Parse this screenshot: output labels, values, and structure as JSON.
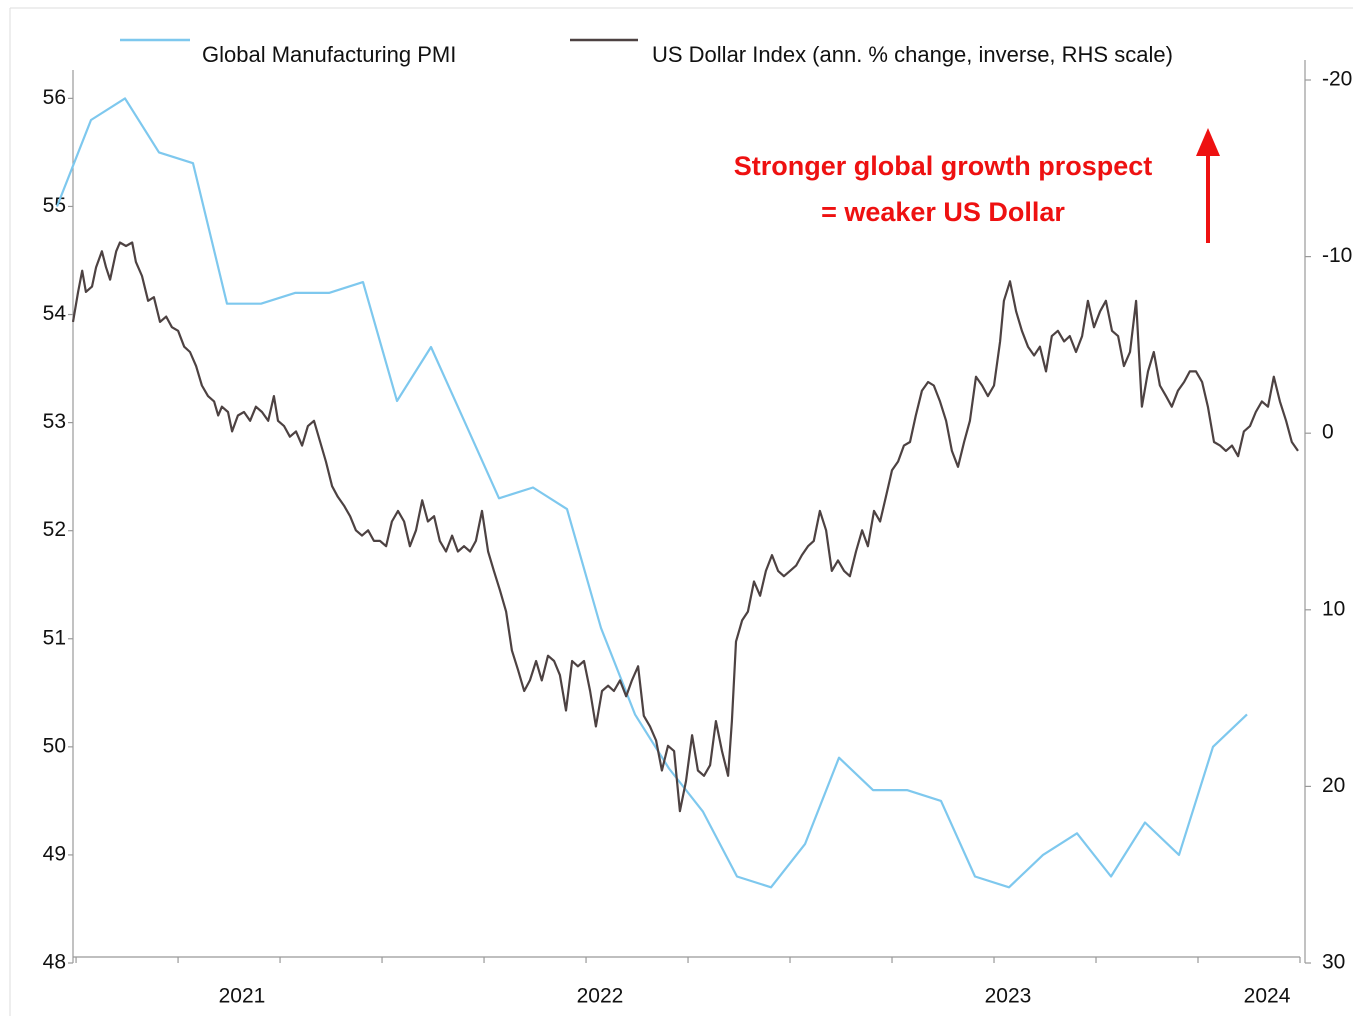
{
  "chart_data": {
    "type": "line",
    "annotations": [
      "Stronger global growth prospect",
      "= weaker US Dollar"
    ],
    "legend": "top",
    "xlim": [
      0.47,
      36.56
    ],
    "xticks": [
      {
        "value": 5.44,
        "label": "2021"
      },
      {
        "value": 15.97,
        "label": "2022"
      },
      {
        "value": 27.97,
        "label": "2023"
      },
      {
        "value": 35.59,
        "label": "2024"
      }
    ],
    "xticks_minor": [
      0.56,
      3.56,
      6.56,
      9.56,
      12.56,
      15.56,
      18.56,
      21.56,
      24.56,
      27.56,
      30.56,
      33.56,
      36.56
    ],
    "ylim": [
      48,
      56.17
    ],
    "yticks": [
      48,
      49,
      50,
      51,
      52,
      53,
      54,
      55,
      56
    ],
    "y2lim": [
      30,
      -20
    ],
    "y2ticks": [
      -20,
      -10,
      0,
      10,
      20,
      30
    ],
    "series": [
      {
        "name": "Global Manufacturing PMI",
        "color": "#7ec8ee",
        "x": [
          0,
          1,
          2,
          3,
          4,
          5,
          6,
          7,
          8,
          9,
          10,
          11,
          12,
          13,
          14,
          15,
          16,
          17,
          18,
          19,
          20,
          21,
          22,
          23,
          24,
          25,
          26,
          27,
          28,
          29,
          30,
          31,
          32,
          33,
          34,
          35
        ],
        "values": [
          55.0,
          55.8,
          56.0,
          55.5,
          55.4,
          54.1,
          54.1,
          54.2,
          54.2,
          54.3,
          53.2,
          53.7,
          53.0,
          52.3,
          52.4,
          52.2,
          51.1,
          50.3,
          49.8,
          49.4,
          48.8,
          48.7,
          49.1,
          49.9,
          49.6,
          49.6,
          49.5,
          48.8,
          48.7,
          49.0,
          49.2,
          48.8,
          49.3,
          49.0,
          50.0,
          50.3
        ]
      },
      {
        "name": "US Dollar Index (ann. % change, inverse, RHS scale)",
        "color": "#4d4242",
        "axis": "y2",
        "x": [
          0.47,
          0.62,
          0.74,
          0.85,
          1.03,
          1.15,
          1.32,
          1.44,
          1.56,
          1.74,
          1.85,
          2.03,
          2.21,
          2.32,
          2.5,
          2.68,
          2.85,
          3.03,
          3.21,
          3.38,
          3.56,
          3.74,
          3.91,
          4.09,
          4.26,
          4.44,
          4.62,
          4.74,
          4.85,
          5.03,
          5.15,
          5.32,
          5.5,
          5.68,
          5.85,
          6.03,
          6.21,
          6.38,
          6.5,
          6.68,
          6.85,
          7.03,
          7.21,
          7.38,
          7.56,
          7.74,
          7.91,
          8.09,
          8.26,
          8.44,
          8.62,
          8.79,
          8.97,
          9.15,
          9.32,
          9.5,
          9.68,
          9.85,
          10.03,
          10.21,
          10.38,
          10.56,
          10.74,
          10.91,
          11.09,
          11.26,
          11.44,
          11.62,
          11.79,
          11.97,
          12.15,
          12.32,
          12.5,
          12.68,
          12.85,
          13.03,
          13.21,
          13.38,
          13.56,
          13.74,
          13.91,
          14.09,
          14.26,
          14.44,
          14.62,
          14.79,
          14.97,
          15.15,
          15.32,
          15.5,
          15.68,
          15.85,
          16.03,
          16.21,
          16.38,
          16.56,
          16.74,
          16.91,
          17.09,
          17.26,
          17.44,
          17.62,
          17.79,
          17.97,
          18.15,
          18.32,
          18.5,
          18.68,
          18.85,
          19.03,
          19.21,
          19.38,
          19.56,
          19.74,
          19.85,
          19.97,
          20.15,
          20.32,
          20.5,
          20.68,
          20.85,
          21.03,
          21.21,
          21.38,
          21.56,
          21.74,
          21.91,
          22.09,
          22.26,
          22.44,
          22.62,
          22.79,
          22.97,
          23.15,
          23.32,
          23.5,
          23.68,
          23.85,
          24.03,
          24.21,
          24.38,
          24.56,
          24.74,
          24.91,
          25.09,
          25.26,
          25.44,
          25.62,
          25.79,
          25.97,
          26.15,
          26.32,
          26.5,
          26.68,
          26.85,
          27.03,
          27.21,
          27.38,
          27.56,
          27.74,
          27.85,
          28.03,
          28.21,
          28.38,
          28.56,
          28.74,
          28.91,
          29.09,
          29.26,
          29.44,
          29.62,
          29.79,
          29.97,
          30.15,
          30.32,
          30.5,
          30.68,
          30.85,
          31.03,
          31.21,
          31.38,
          31.56,
          31.74,
          31.91,
          32.09,
          32.26,
          32.44,
          32.62,
          32.79,
          32.97,
          33.15,
          33.32,
          33.5,
          33.68,
          33.85,
          34.03,
          34.21,
          34.38,
          34.56,
          34.74,
          34.91,
          35.09,
          35.26,
          35.44,
          35.62,
          35.79,
          35.97,
          36.15,
          36.32,
          36.5
        ],
        "values": [
          -6.3,
          -8.0,
          -9.2,
          -8.0,
          -8.3,
          -9.4,
          -10.3,
          -9.4,
          -8.7,
          -10.3,
          -10.8,
          -10.6,
          -10.8,
          -9.7,
          -8.9,
          -7.5,
          -7.7,
          -6.3,
          -6.6,
          -6.0,
          -5.8,
          -4.9,
          -4.6,
          -3.8,
          -2.7,
          -2.1,
          -1.8,
          -1.0,
          -1.5,
          -1.2,
          -0.1,
          -1.0,
          -1.2,
          -0.7,
          -1.5,
          -1.2,
          -0.7,
          -2.1,
          -0.7,
          -0.4,
          0.2,
          -0.1,
          0.7,
          -0.4,
          -0.7,
          0.5,
          1.6,
          3.0,
          3.6,
          4.1,
          4.7,
          5.5,
          5.8,
          5.5,
          6.1,
          6.1,
          6.4,
          5.0,
          4.4,
          5.0,
          6.4,
          5.5,
          3.8,
          5.0,
          4.7,
          6.1,
          6.7,
          5.8,
          6.7,
          6.4,
          6.7,
          6.1,
          4.4,
          6.7,
          7.8,
          8.9,
          10.1,
          12.3,
          13.4,
          14.6,
          14.0,
          12.9,
          14.0,
          12.6,
          12.9,
          13.7,
          15.7,
          12.9,
          13.2,
          12.9,
          14.6,
          16.6,
          14.6,
          14.3,
          14.6,
          14.0,
          14.9,
          14.0,
          13.2,
          16.0,
          16.6,
          17.4,
          19.1,
          17.7,
          18.0,
          21.4,
          19.7,
          17.1,
          19.1,
          19.4,
          18.8,
          16.3,
          18.0,
          19.4,
          16.3,
          11.8,
          10.6,
          10.1,
          8.4,
          9.2,
          7.8,
          6.9,
          7.8,
          8.1,
          7.8,
          7.5,
          6.9,
          6.4,
          6.1,
          4.4,
          5.5,
          7.8,
          7.2,
          7.8,
          8.1,
          6.7,
          5.5,
          6.4,
          4.4,
          5.0,
          3.6,
          2.1,
          1.6,
          0.7,
          0.5,
          -1.0,
          -2.4,
          -2.9,
          -2.7,
          -1.8,
          -0.7,
          1.0,
          1.9,
          0.5,
          -0.7,
          -3.2,
          -2.7,
          -2.1,
          -2.7,
          -5.2,
          -7.5,
          -8.6,
          -6.9,
          -5.8,
          -4.9,
          -4.4,
          -4.9,
          -3.5,
          -5.5,
          -5.8,
          -5.2,
          -5.5,
          -4.6,
          -5.5,
          -7.5,
          -6.0,
          -6.9,
          -7.5,
          -5.8,
          -5.5,
          -3.8,
          -4.6,
          -7.5,
          -1.5,
          -3.5,
          -4.6,
          -2.7,
          -2.1,
          -1.5,
          -2.4,
          -2.9,
          -3.5,
          -3.5,
          -2.9,
          -1.5,
          0.5,
          0.7,
          1.0,
          0.7,
          1.3,
          -0.1,
          -0.4,
          -1.2,
          -1.8,
          -1.5,
          -3.2,
          -1.8,
          -0.7,
          0.5,
          1.0
        ]
      }
    ]
  }
}
